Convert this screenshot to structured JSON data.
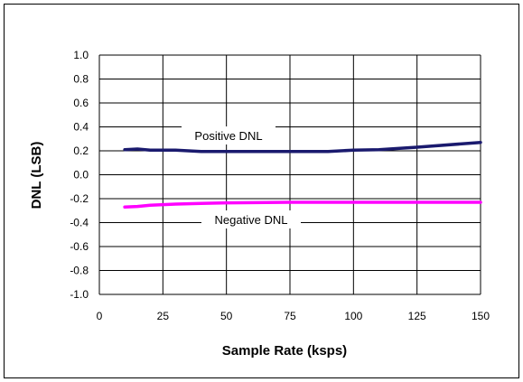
{
  "chart_data": {
    "type": "line",
    "title": "",
    "xlabel": "Sample Rate (ksps)",
    "ylabel": "DNL (LSB)",
    "xlim": [
      0,
      150
    ],
    "ylim": [
      -1.0,
      1.0
    ],
    "xticks": [
      "0",
      "25",
      "50",
      "75",
      "100",
      "125",
      "150"
    ],
    "yticks": [
      "1.0",
      "0.8",
      "0.6",
      "0.4",
      "0.2",
      "0.0",
      "-0.2",
      "-0.4",
      "-0.6",
      "-0.8",
      "-1.0"
    ],
    "grid": true,
    "series": [
      {
        "name": "Positive DNL",
        "color": "#1a1a6e",
        "x": [
          10,
          15,
          20,
          30,
          40,
          50,
          60,
          75,
          90,
          100,
          110,
          125,
          150
        ],
        "y": [
          0.21,
          0.215,
          0.205,
          0.205,
          0.195,
          0.195,
          0.195,
          0.195,
          0.195,
          0.205,
          0.21,
          0.23,
          0.27
        ]
      },
      {
        "name": "Negative DNL",
        "color": "#ff00ff",
        "x": [
          10,
          15,
          20,
          25,
          30,
          40,
          50,
          75,
          100,
          125,
          150
        ],
        "y": [
          -0.27,
          -0.265,
          -0.255,
          -0.25,
          -0.245,
          -0.24,
          -0.235,
          -0.23,
          -0.23,
          -0.23,
          -0.23
        ]
      }
    ]
  }
}
